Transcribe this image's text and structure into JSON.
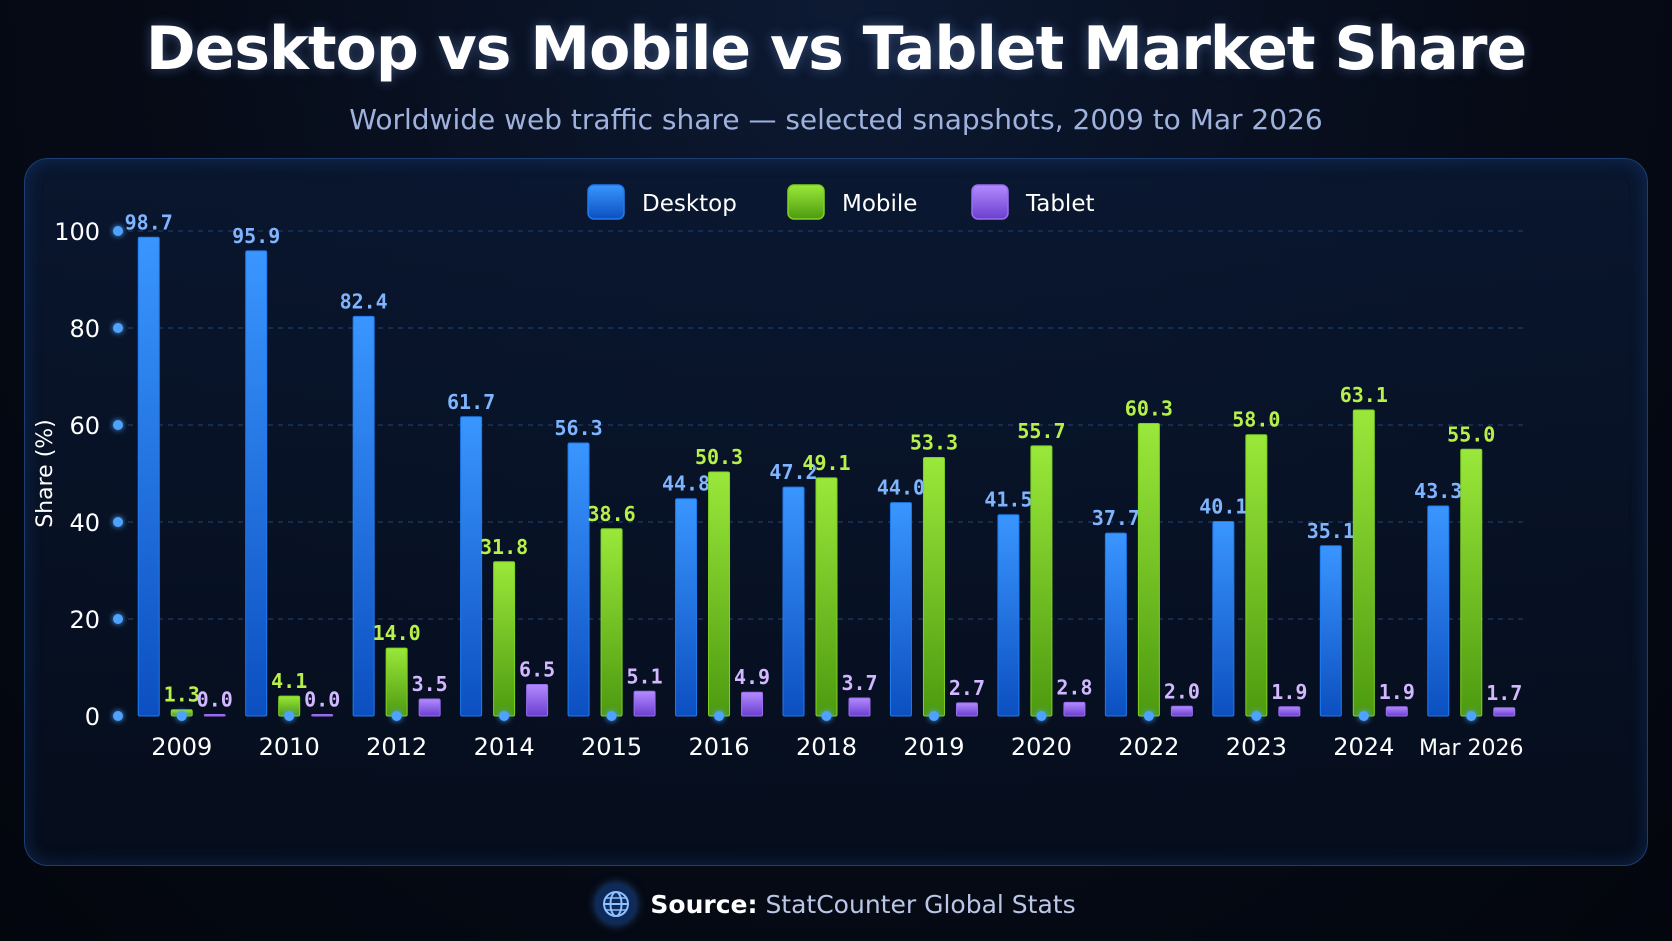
{
  "title": "Desktop vs Mobile vs Tablet Market Share",
  "subtitle": "Worldwide web traffic share — selected snapshots, 2009 to Mar 2026",
  "source": {
    "label": "Source:",
    "text": "StatCounter Global Stats",
    "icon": "globe-icon"
  },
  "colors": {
    "desktop": "#1e7bf0",
    "mobile": "#7ed321",
    "tablet": "#9b6cf0",
    "desktop_label": "#7fb4ff",
    "mobile_label": "#b8f04a",
    "tablet_label": "#d2b8ff",
    "axis": "#2f8fff",
    "grid": "#1f3a63"
  },
  "chart_data": {
    "type": "bar",
    "ylabel": "Share (%)",
    "xlabel": "",
    "ylim": [
      0,
      100
    ],
    "yticks": [
      0,
      20,
      40,
      60,
      80,
      100
    ],
    "grid": true,
    "legend_position": "top-center",
    "categories": [
      "2009",
      "2010",
      "2012",
      "2014",
      "2015",
      "2016",
      "2018",
      "2019",
      "2020",
      "2022",
      "2023",
      "2024",
      "Mar 2026"
    ],
    "series": [
      {
        "name": "Desktop",
        "key": "desktop",
        "values": [
          98.7,
          95.9,
          82.4,
          61.7,
          56.3,
          44.8,
          47.2,
          44.0,
          41.5,
          37.7,
          40.1,
          35.1,
          43.3
        ]
      },
      {
        "name": "Mobile",
        "key": "mobile",
        "values": [
          1.3,
          4.1,
          14.0,
          31.8,
          38.6,
          50.3,
          49.1,
          53.3,
          55.7,
          60.3,
          58.0,
          63.1,
          55.0
        ]
      },
      {
        "name": "Tablet",
        "key": "tablet",
        "values": [
          0.0,
          0.0,
          3.5,
          6.5,
          5.1,
          4.9,
          3.7,
          2.7,
          2.8,
          2.0,
          1.9,
          1.9,
          1.7
        ]
      }
    ]
  }
}
